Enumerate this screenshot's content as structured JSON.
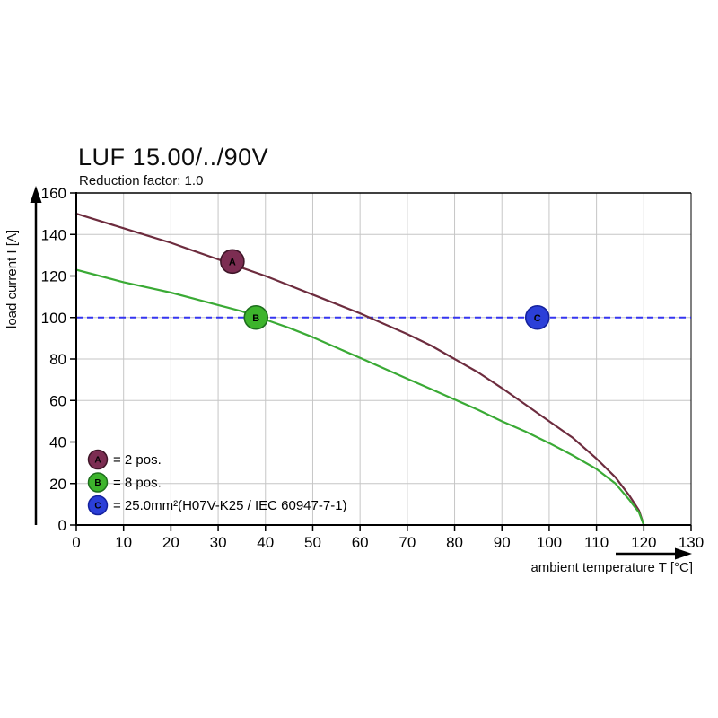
{
  "title": "LUF 15.00/../90V",
  "subtitle": "Reduction factor: 1.0",
  "chart_data": {
    "type": "line",
    "title": "LUF 15.00/../90V",
    "subtitle": "Reduction factor: 1.0",
    "xlabel": "ambient temperature T [°C]",
    "ylabel": "load current I [A]",
    "xlim": [
      0,
      130
    ],
    "ylim": [
      0,
      160
    ],
    "xticks": [
      0,
      10,
      20,
      30,
      40,
      50,
      60,
      70,
      80,
      90,
      100,
      110,
      120,
      130
    ],
    "yticks": [
      0,
      20,
      40,
      60,
      80,
      100,
      120,
      140,
      160
    ],
    "grid": true,
    "grid_color": "#c6c6c6",
    "axis_color": "#000000",
    "series": [
      {
        "id": "A",
        "legend": "= 2 pos.",
        "color": "#6d2c3e",
        "marker_fill": "#7c2d52",
        "marker_stroke": "#3f1628",
        "marker_point": [
          33,
          127
        ],
        "dashed": false,
        "points": [
          [
            0,
            150
          ],
          [
            5,
            146.5
          ],
          [
            10,
            143
          ],
          [
            15,
            139.5
          ],
          [
            20,
            136
          ],
          [
            25,
            132
          ],
          [
            30,
            128
          ],
          [
            35,
            124
          ],
          [
            40,
            120
          ],
          [
            45,
            115.5
          ],
          [
            50,
            111
          ],
          [
            55,
            106.5
          ],
          [
            60,
            102
          ],
          [
            65,
            97
          ],
          [
            70,
            92
          ],
          [
            75,
            86.5
          ],
          [
            80,
            80
          ],
          [
            85,
            73.5
          ],
          [
            90,
            66
          ],
          [
            95,
            58
          ],
          [
            100,
            50
          ],
          [
            105,
            42
          ],
          [
            110,
            32
          ],
          [
            114,
            23
          ],
          [
            117,
            14
          ],
          [
            119,
            7
          ],
          [
            120,
            0
          ]
        ]
      },
      {
        "id": "B",
        "legend": "= 8 pos.",
        "color": "#3aaa35",
        "marker_fill": "#3db42c",
        "marker_stroke": "#1d6e1d",
        "marker_point": [
          38,
          100
        ],
        "dashed": false,
        "points": [
          [
            0,
            123
          ],
          [
            5,
            120
          ],
          [
            10,
            117
          ],
          [
            15,
            114.5
          ],
          [
            20,
            112
          ],
          [
            25,
            109
          ],
          [
            30,
            106
          ],
          [
            35,
            103
          ],
          [
            40,
            99
          ],
          [
            45,
            95
          ],
          [
            50,
            90.5
          ],
          [
            55,
            85.5
          ],
          [
            60,
            80.5
          ],
          [
            65,
            75.5
          ],
          [
            70,
            70.5
          ],
          [
            75,
            65.5
          ],
          [
            80,
            60.5
          ],
          [
            85,
            55.5
          ],
          [
            90,
            50
          ],
          [
            95,
            45
          ],
          [
            100,
            39.5
          ],
          [
            105,
            33.5
          ],
          [
            110,
            27
          ],
          [
            114,
            20
          ],
          [
            117,
            12
          ],
          [
            119,
            6
          ],
          [
            120,
            0
          ]
        ]
      },
      {
        "id": "C",
        "legend": "= 25.0mm²(H07V-K25 / IEC 60947-7-1)",
        "color": "#3535f0",
        "marker_fill": "#2b3fd8",
        "marker_stroke": "#14219e",
        "marker_point": [
          97.5,
          100
        ],
        "dashed": true,
        "points": [
          [
            0,
            100
          ],
          [
            130,
            100
          ]
        ]
      }
    ]
  }
}
